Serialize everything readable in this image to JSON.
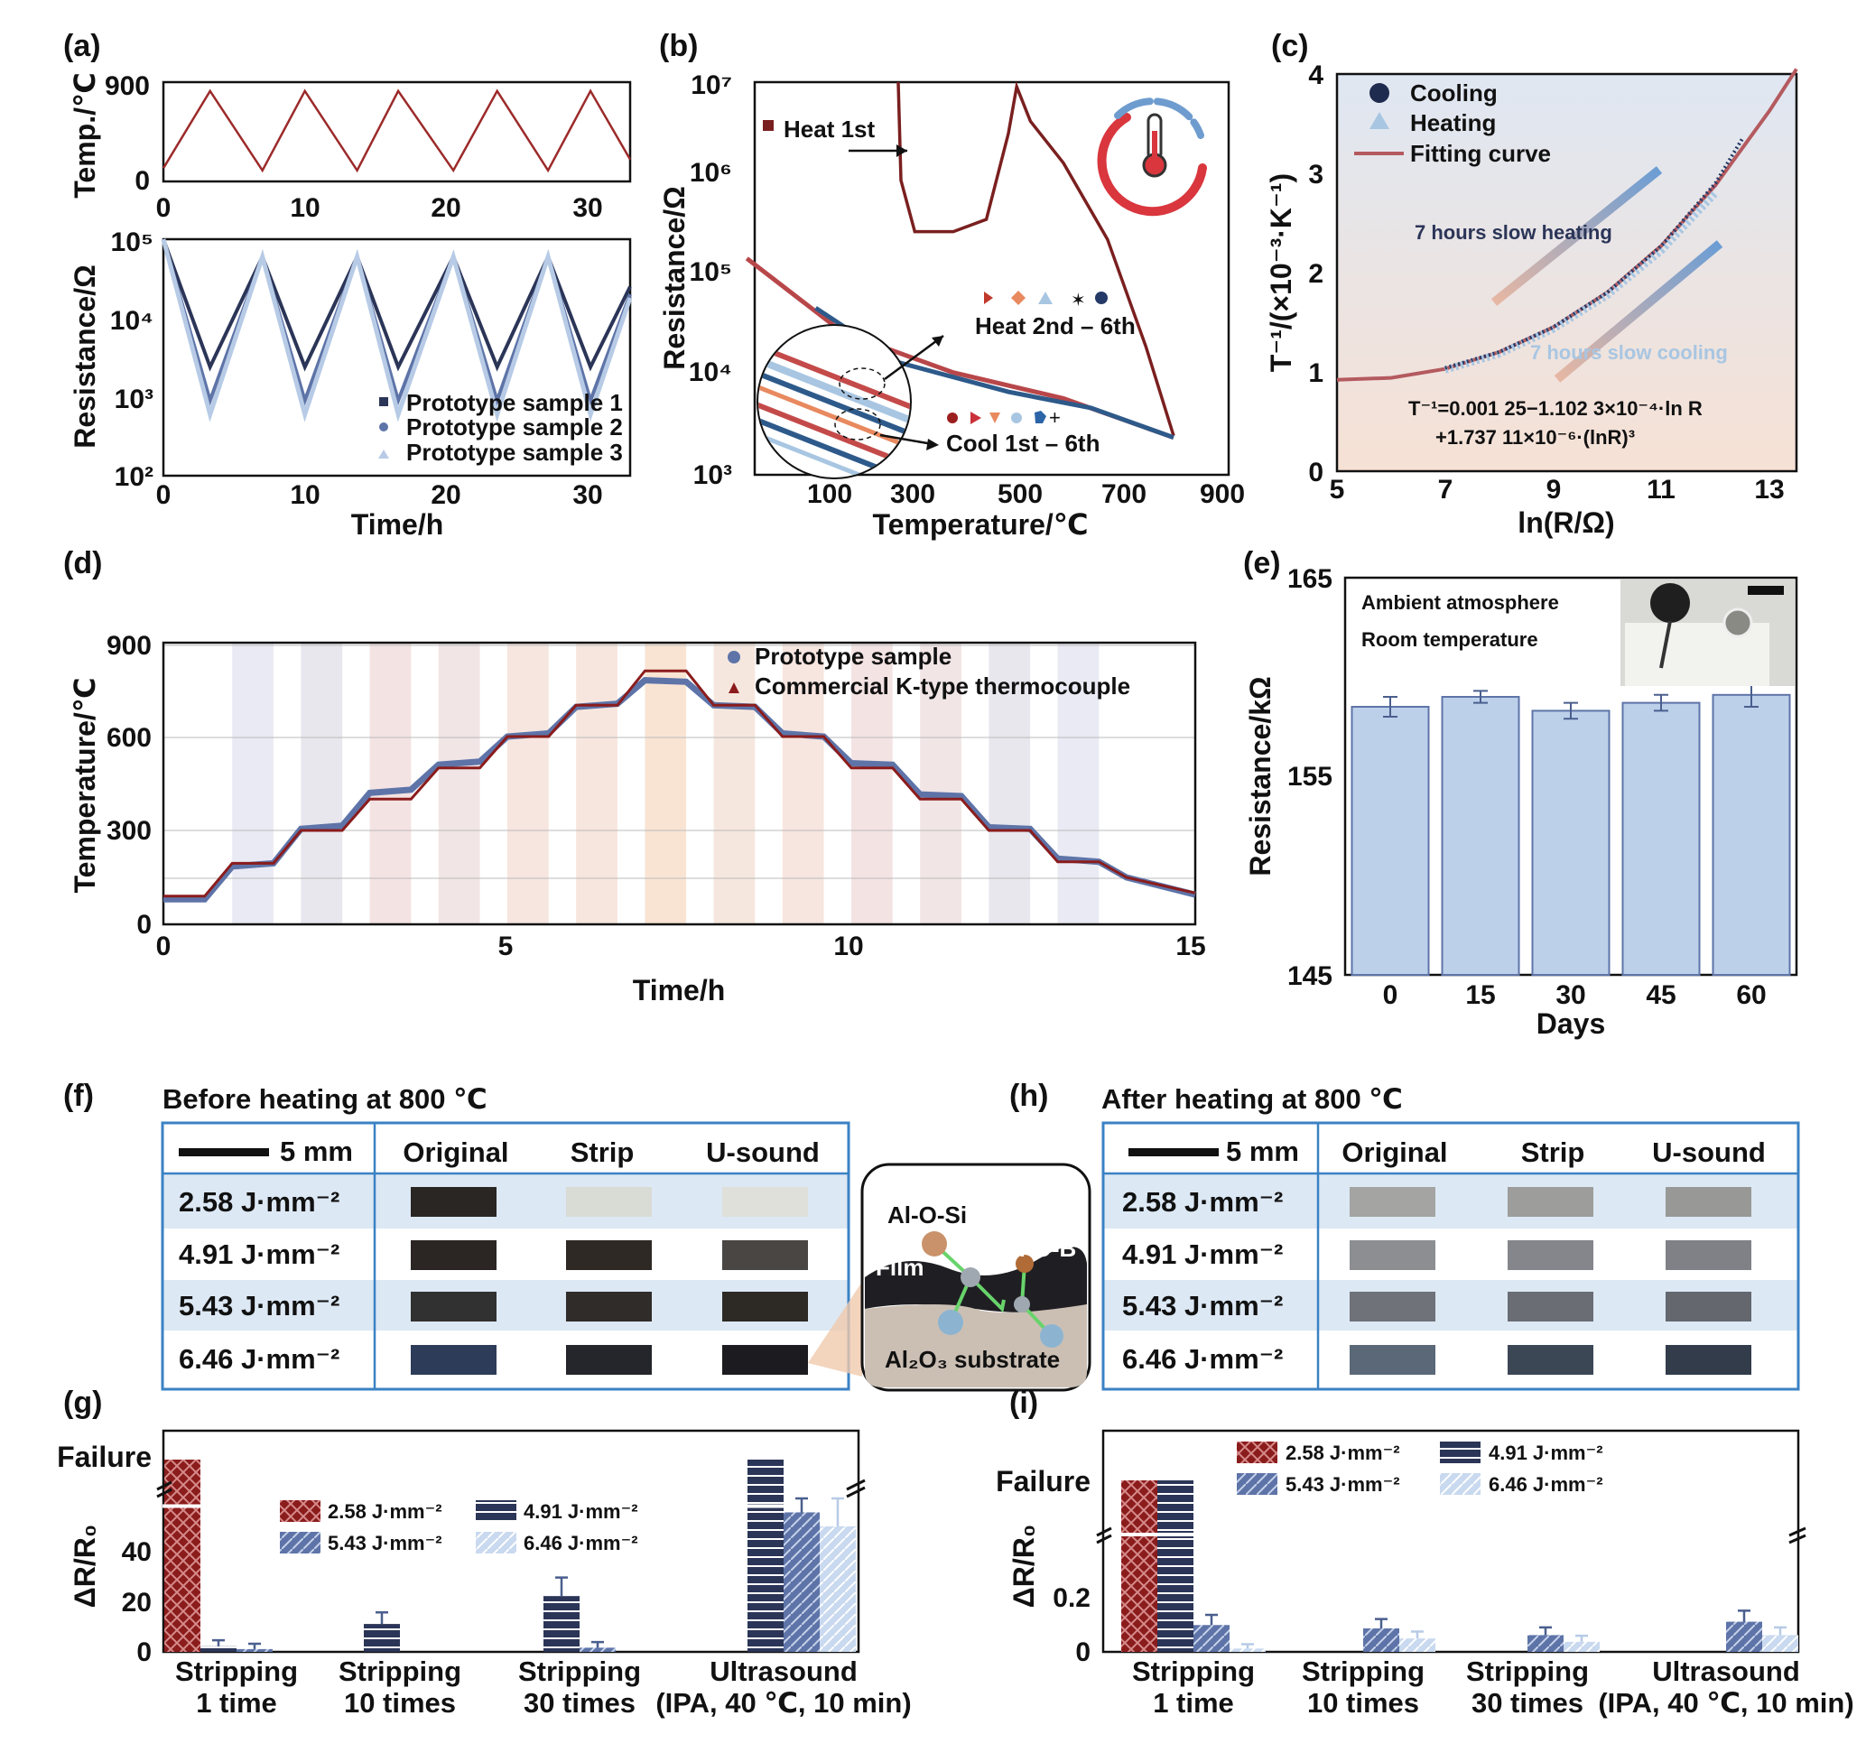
{
  "colors": {
    "red": "#8b1c1c",
    "dark": "#2b3557",
    "mid": "#5e74a8",
    "light": "#b7cbe6",
    "bar": "#bcd0ea",
    "rowblue": "#dce8f4",
    "frame": "#3b82c4"
  },
  "panels": [
    "(a)",
    "(b)",
    "(c)",
    "(d)",
    "(e)",
    "(f)",
    "(g)",
    "(h)",
    "(i)"
  ],
  "panel_a": {
    "top_ylabel": "Temp./℃",
    "bottom_ylabel": "Resistance/Ω",
    "xlabel": "Time/h",
    "top_yticks": [
      "0",
      "900"
    ],
    "xticks": [
      "0",
      "10",
      "20",
      "30"
    ],
    "bottom_yticks": [
      "10²",
      "10³",
      "10⁴",
      "10⁵"
    ],
    "legend": [
      "Prototype sample 1",
      "Prototype sample 2",
      "Prototype sample 3"
    ]
  },
  "panel_b": {
    "ylabel": "Resistance/Ω",
    "xlabel": "Temperature/℃",
    "xticks": [
      "100",
      "300",
      "500",
      "700",
      "900"
    ],
    "yticks": [
      "10³",
      "10⁴",
      "10⁵",
      "10⁶",
      "10⁷"
    ],
    "heat1": "Heat 1st",
    "heat2": "Heat 2nd – 6th",
    "cool": "Cool 1st – 6th"
  },
  "panel_c": {
    "ylabel": "T⁻¹/(×10⁻³·K⁻¹)",
    "xlabel": "ln(R/Ω)",
    "xticks": [
      "5",
      "7",
      "9",
      "11",
      "13"
    ],
    "yticks": [
      "0",
      "1",
      "2",
      "3",
      "4"
    ],
    "legend": [
      "Cooling",
      "Heating",
      "Fitting curve"
    ],
    "ann_heating": "7 hours slow heating",
    "ann_cooling": "7 hours slow cooling",
    "eq1": "T⁻¹=0.001 25−1.102 3×10⁻⁴·ln R",
    "eq2": "+1.737 11×10⁻⁶·(lnR)³"
  },
  "panel_d": {
    "ylabel": "Temperature/℃",
    "xlabel": "Time/h",
    "xticks": [
      "0",
      "5",
      "10",
      "15"
    ],
    "yticks": [
      "0",
      "300",
      "600",
      "900"
    ],
    "legend": [
      "Prototype sample",
      "Commercial K-type thermocouple"
    ]
  },
  "panel_e": {
    "ylabel": "Resistance/kΩ",
    "xlabel": "Days",
    "note1": "Ambient atmosphere",
    "note2": "Room temperature",
    "yticks": [
      "145",
      "155",
      "165"
    ]
  },
  "table_f": {
    "title": "Before heating at 800 ℃",
    "scale": "5 mm",
    "cols": [
      "Original",
      "Strip",
      "U-sound"
    ],
    "rows": [
      "2.58 J·mm⁻²",
      "4.91 J·mm⁻²",
      "5.43 J·mm⁻²",
      "6.46 J·mm⁻²"
    ]
  },
  "table_h": {
    "title": "After heating at 800 ℃",
    "scale": "5 mm",
    "cols": [
      "Original",
      "Strip",
      "U-sound"
    ],
    "rows": [
      "2.58 J·mm⁻²",
      "4.91 J·mm⁻²",
      "5.43 J·mm⁻²",
      "6.46 J·mm⁻²"
    ]
  },
  "schematic": {
    "alosi": "Al-O-Si",
    "aloa": "Al-O-B",
    "film": "Film",
    "substrate": "Al₂O₃ substrate"
  },
  "panel_g": {
    "ylabel": "ΔR/R₀",
    "failure": "Failure",
    "yticks": [
      "0",
      "20",
      "40"
    ],
    "cats1": [
      "Stripping",
      "Stripping",
      "Stripping",
      "Ultrasound"
    ],
    "cats2": [
      "1 time",
      "10 times",
      "30 times",
      "(IPA, 40 ℃, 10 min)"
    ],
    "legend": [
      "2.58 J·mm⁻²",
      "4.91 J·mm⁻²",
      "5.43 J·mm⁻²",
      "6.46 J·mm⁻²"
    ]
  },
  "panel_i": {
    "ylabel": "ΔR/R₀",
    "failure": "Failure",
    "yticks": [
      "0",
      "0.2"
    ],
    "cats1": [
      "Stripping",
      "Stripping",
      "Stripping",
      "Ultrasound"
    ],
    "cats2": [
      "1 time",
      "10 times",
      "30 times",
      "(IPA, 40 ℃, 10 min)"
    ],
    "legend": [
      "2.58 J·mm⁻²",
      "4.91 J·mm⁻²",
      "5.43 J·mm⁻²",
      "6.46 J·mm⁻²"
    ]
  },
  "chart_data": [
    {
      "panel": "a-top",
      "type": "line",
      "xlabel": "Time/h",
      "ylabel": "Temp./℃",
      "xlim": [
        0,
        33
      ],
      "ylim": [
        0,
        900
      ],
      "series": [
        {
          "name": "Temperature",
          "x": [
            0,
            3.3,
            7,
            10,
            13.7,
            16.6,
            20.5,
            23.6,
            27.2,
            30.2,
            33
          ],
          "y": [
            120,
            820,
            100,
            820,
            100,
            820,
            100,
            820,
            100,
            820,
            200
          ]
        }
      ]
    },
    {
      "panel": "a-bottom",
      "type": "line",
      "xlabel": "Time/h",
      "ylabel": "Resistance/Ω",
      "xlim": [
        0,
        33
      ],
      "yscale": "log",
      "ylim": [
        100,
        100000
      ],
      "series": [
        {
          "name": "Prototype sample 1",
          "x": [
            0,
            3.3,
            7,
            10,
            13.7,
            16.6,
            20.5,
            23.6,
            27.2,
            30.2,
            33
          ],
          "y": [
            100000,
            2400,
            60000,
            2400,
            60000,
            2400,
            60000,
            2400,
            60000,
            2400,
            25000
          ]
        },
        {
          "name": "Prototype sample 2",
          "x": [
            0,
            3.3,
            7,
            10,
            13.7,
            16.6,
            20.5,
            23.6,
            27.2,
            30.2,
            33
          ],
          "y": [
            100000,
            900,
            60000,
            900,
            60000,
            900,
            60000,
            900,
            60000,
            900,
            20000
          ]
        },
        {
          "name": "Prototype sample 3",
          "x": [
            0,
            3.3,
            7,
            10,
            13.7,
            16.6,
            20.5,
            23.6,
            27.2,
            30.2,
            33
          ],
          "y": [
            100000,
            600,
            60000,
            600,
            60000,
            600,
            60000,
            600,
            60000,
            600,
            18000
          ]
        }
      ]
    },
    {
      "panel": "b",
      "type": "line",
      "xlabel": "Temperature/℃",
      "ylabel": "Resistance/Ω",
      "xlim": [
        0,
        900
      ],
      "yscale": "log",
      "ylim": [
        1000,
        10000000
      ],
      "series": [
        {
          "name": "Heat 1st",
          "x": [
            300,
            305,
            330,
            400,
            460,
            500,
            515,
            540,
            600,
            680,
            750,
            800
          ],
          "y": [
            10000000,
            1000000,
            300000,
            300000,
            400000,
            3000000,
            9000000,
            4000000,
            1500000,
            250000,
            20000,
            2500
          ]
        },
        {
          "name": "Heat 2nd – 6th",
          "x": [
            25,
            200,
            400,
            600,
            800
          ],
          "y": [
            160000,
            28000,
            11000,
            6000,
            2400
          ]
        },
        {
          "name": "Cool 1st – 6th",
          "x": [
            150,
            300,
            500,
            650,
            800
          ],
          "y": [
            50000,
            14000,
            7000,
            4800,
            2400
          ]
        }
      ]
    },
    {
      "panel": "c",
      "type": "scatter",
      "xlabel": "ln(R/Ω)",
      "ylabel": "T⁻¹/(×10⁻³·K⁻¹)",
      "xlim": [
        5,
        13.5
      ],
      "ylim": [
        0,
        4
      ],
      "series": [
        {
          "name": "Cooling",
          "x": [
            7,
            8,
            9,
            10,
            11,
            12,
            12.5
          ],
          "y": [
            1.04,
            1.2,
            1.45,
            1.8,
            2.27,
            2.9,
            3.35
          ]
        },
        {
          "name": "Heating",
          "x": [
            7,
            8,
            9,
            10,
            11,
            12
          ],
          "y": [
            1.02,
            1.18,
            1.43,
            1.77,
            2.22,
            2.8
          ]
        },
        {
          "name": "Fitting curve",
          "x": [
            5,
            6,
            7,
            8,
            9,
            10,
            11,
            12,
            13,
            13.5
          ],
          "y": [
            0.92,
            0.94,
            1.03,
            1.2,
            1.45,
            1.8,
            2.27,
            2.88,
            3.63,
            4.05
          ]
        }
      ]
    },
    {
      "panel": "d",
      "type": "line",
      "xlabel": "Time/h",
      "ylabel": "Temperature/℃",
      "xlim": [
        0,
        15
      ],
      "ylim": [
        0,
        900
      ],
      "series": [
        {
          "name": "Prototype sample",
          "x": [
            0,
            0.6,
            1.0,
            1.6,
            2.0,
            2.6,
            3.0,
            3.6,
            4.0,
            4.6,
            5.0,
            5.6,
            6.0,
            6.6,
            7.0,
            7.6,
            8.0,
            8.6,
            9.0,
            9.6,
            10.0,
            10.6,
            11.0,
            11.6,
            12.0,
            12.6,
            13.0,
            13.6,
            14.0,
            15.0
          ],
          "y": [
            80,
            80,
            185,
            195,
            305,
            315,
            420,
            430,
            510,
            520,
            600,
            610,
            695,
            705,
            780,
            775,
            700,
            695,
            610,
            600,
            515,
            510,
            415,
            410,
            310,
            305,
            210,
            200,
            150,
            95
          ]
        },
        {
          "name": "Commercial K-type thermocouple",
          "x": [
            0,
            0.6,
            1.0,
            1.6,
            2.0,
            2.6,
            3.0,
            3.6,
            4.0,
            4.6,
            5.0,
            5.6,
            6.0,
            6.6,
            7.0,
            7.6,
            8.0,
            8.6,
            9.0,
            9.6,
            10.0,
            10.6,
            11.0,
            11.6,
            12.0,
            12.6,
            13.0,
            13.6,
            14.0,
            15.0
          ],
          "y": [
            90,
            90,
            195,
            195,
            300,
            300,
            400,
            400,
            500,
            500,
            600,
            600,
            700,
            700,
            810,
            810,
            700,
            700,
            600,
            600,
            500,
            500,
            400,
            400,
            300,
            300,
            200,
            200,
            150,
            100
          ]
        }
      ]
    },
    {
      "panel": "e",
      "type": "bar",
      "xlabel": "Days",
      "ylabel": "Resistance/kΩ",
      "categories": [
        "0",
        "15",
        "30",
        "45",
        "60"
      ],
      "values": [
        158.5,
        159.0,
        158.3,
        158.7,
        159.1
      ],
      "errors": [
        0.5,
        0.3,
        0.4,
        0.4,
        0.6
      ],
      "ylim": [
        145,
        165
      ]
    },
    {
      "panel": "g",
      "type": "bar",
      "ylabel": "ΔR/R₀",
      "categories": [
        "Stripping 1 time",
        "Stripping 10 times",
        "Stripping 30 times",
        "Ultrasound (IPA, 40 ℃, 10 min)"
      ],
      "series": [
        {
          "name": "2.58 J·mm⁻²",
          "values": [
            "Failure",
            0,
            0,
            0
          ]
        },
        {
          "name": "4.91 J·mm⁻²",
          "values": [
            2,
            10,
            20,
            "Failure"
          ]
        },
        {
          "name": "5.43 J·mm⁻²",
          "values": [
            1,
            0,
            1.5,
            50
          ]
        },
        {
          "name": "6.46 J·mm⁻²",
          "values": [
            0,
            0,
            0,
            45
          ]
        }
      ],
      "ylim": [
        0,
        55
      ]
    },
    {
      "panel": "i",
      "type": "bar",
      "ylabel": "ΔR/R₀",
      "categories": [
        "Stripping 1 time",
        "Stripping 10 times",
        "Stripping 30 times",
        "Ultrasound (IPA, 40 ℃, 10 min)"
      ],
      "series": [
        {
          "name": "2.58 J·mm⁻²",
          "values": [
            "Failure",
            0,
            0,
            0
          ]
        },
        {
          "name": "4.91 J·mm⁻²",
          "values": [
            "Failure",
            0,
            0,
            0
          ]
        },
        {
          "name": "5.43 J·mm⁻²",
          "values": [
            0.08,
            0.07,
            0.05,
            0.09
          ]
        },
        {
          "name": "6.46 J·mm⁻²",
          "values": [
            0.01,
            0.04,
            0.03,
            0.05
          ]
        }
      ],
      "ylim": [
        0,
        0.4
      ]
    }
  ]
}
